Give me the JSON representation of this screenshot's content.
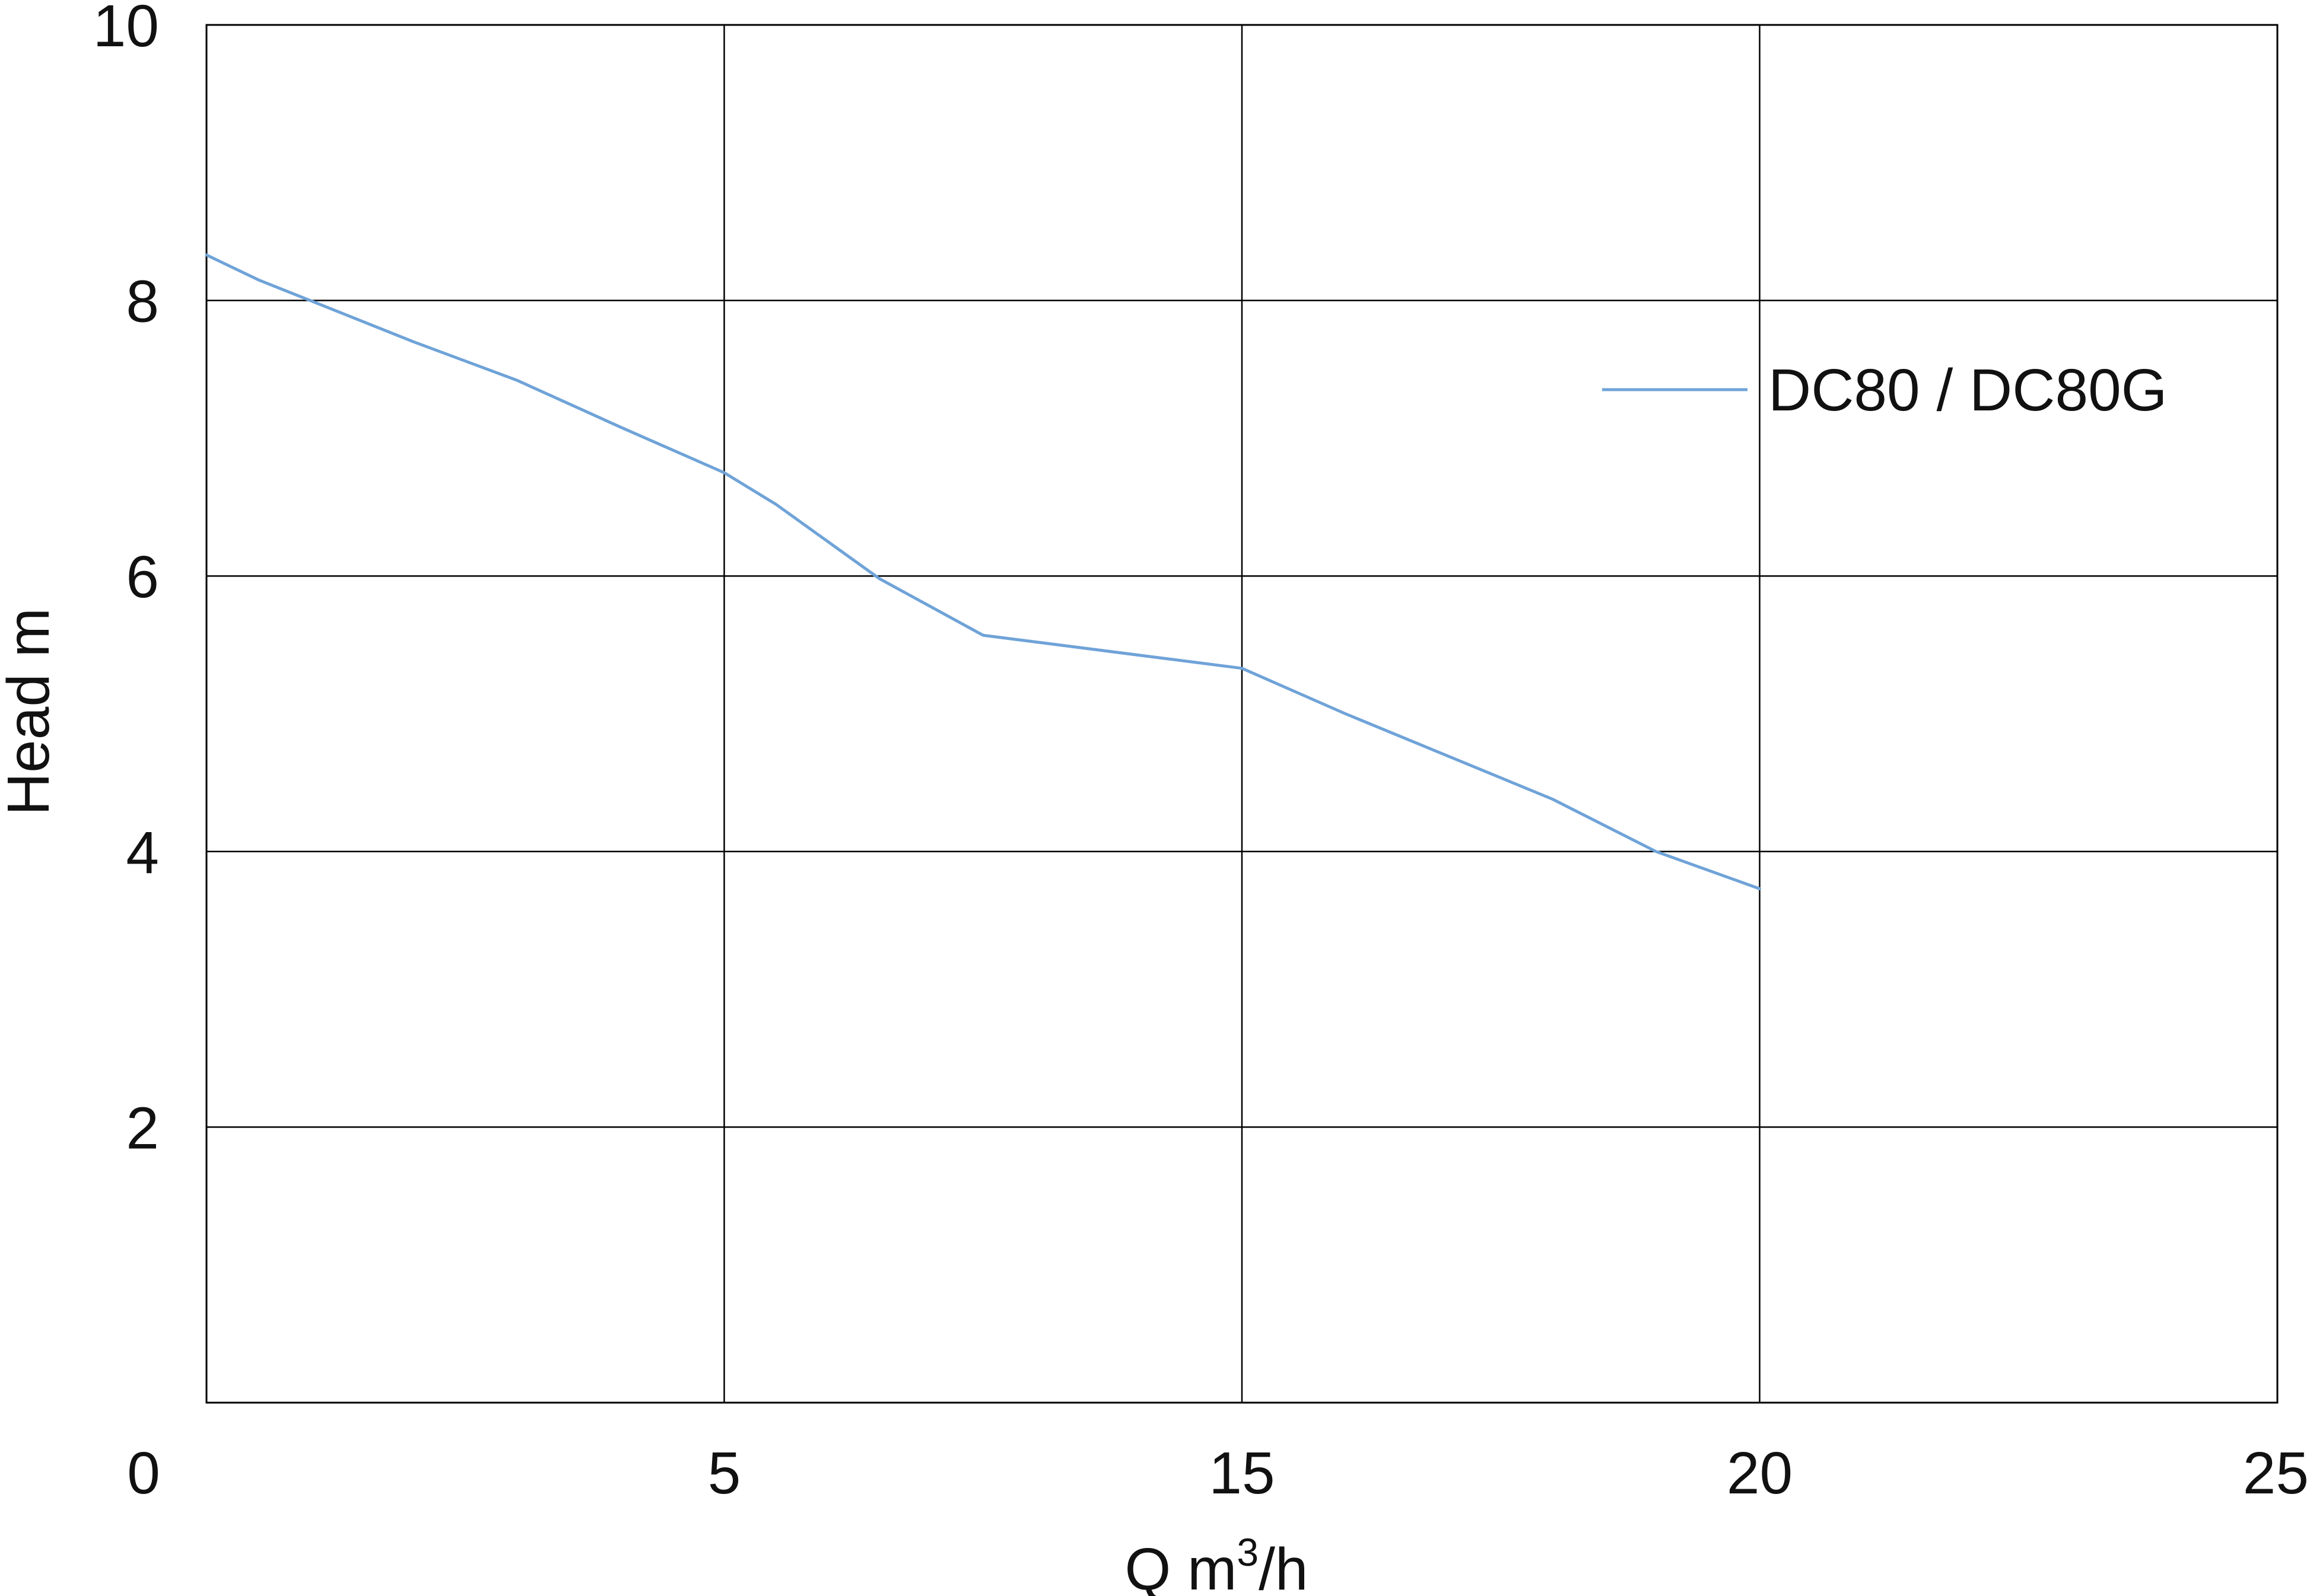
{
  "chart_data": {
    "type": "line",
    "title": "",
    "xlabel": {
      "prefix": "Q m",
      "sup": "3",
      "suffix": "/h"
    },
    "ylabel": "Head m",
    "x_ticks": [
      "0",
      "5",
      "15",
      "20",
      "25"
    ],
    "y_ticks": [
      "2",
      "4",
      "6",
      "8",
      "10"
    ],
    "ylim": [
      0,
      10
    ],
    "grid": true,
    "legend_position": "top-right",
    "series": [
      {
        "name": "DC80 / DC80G",
        "color": "#6fa3d8",
        "points": [
          {
            "x": 0,
            "y": 8.33
          },
          {
            "x": 0.5,
            "y": 8.15
          },
          {
            "x": 1,
            "y": 8.0
          },
          {
            "x": 2,
            "y": 7.7
          },
          {
            "x": 3,
            "y": 7.42
          },
          {
            "x": 4,
            "y": 7.08
          },
          {
            "x": 5,
            "y": 6.75
          },
          {
            "x": 6,
            "y": 6.52
          },
          {
            "x": 8,
            "y": 5.98
          },
          {
            "x": 10,
            "y": 5.57
          },
          {
            "x": 15,
            "y": 5.33
          },
          {
            "x": 16,
            "y": 5.0
          },
          {
            "x": 18,
            "y": 4.38
          },
          {
            "x": 19,
            "y": 4.0
          },
          {
            "x": 20,
            "y": 3.73
          }
        ]
      }
    ]
  }
}
